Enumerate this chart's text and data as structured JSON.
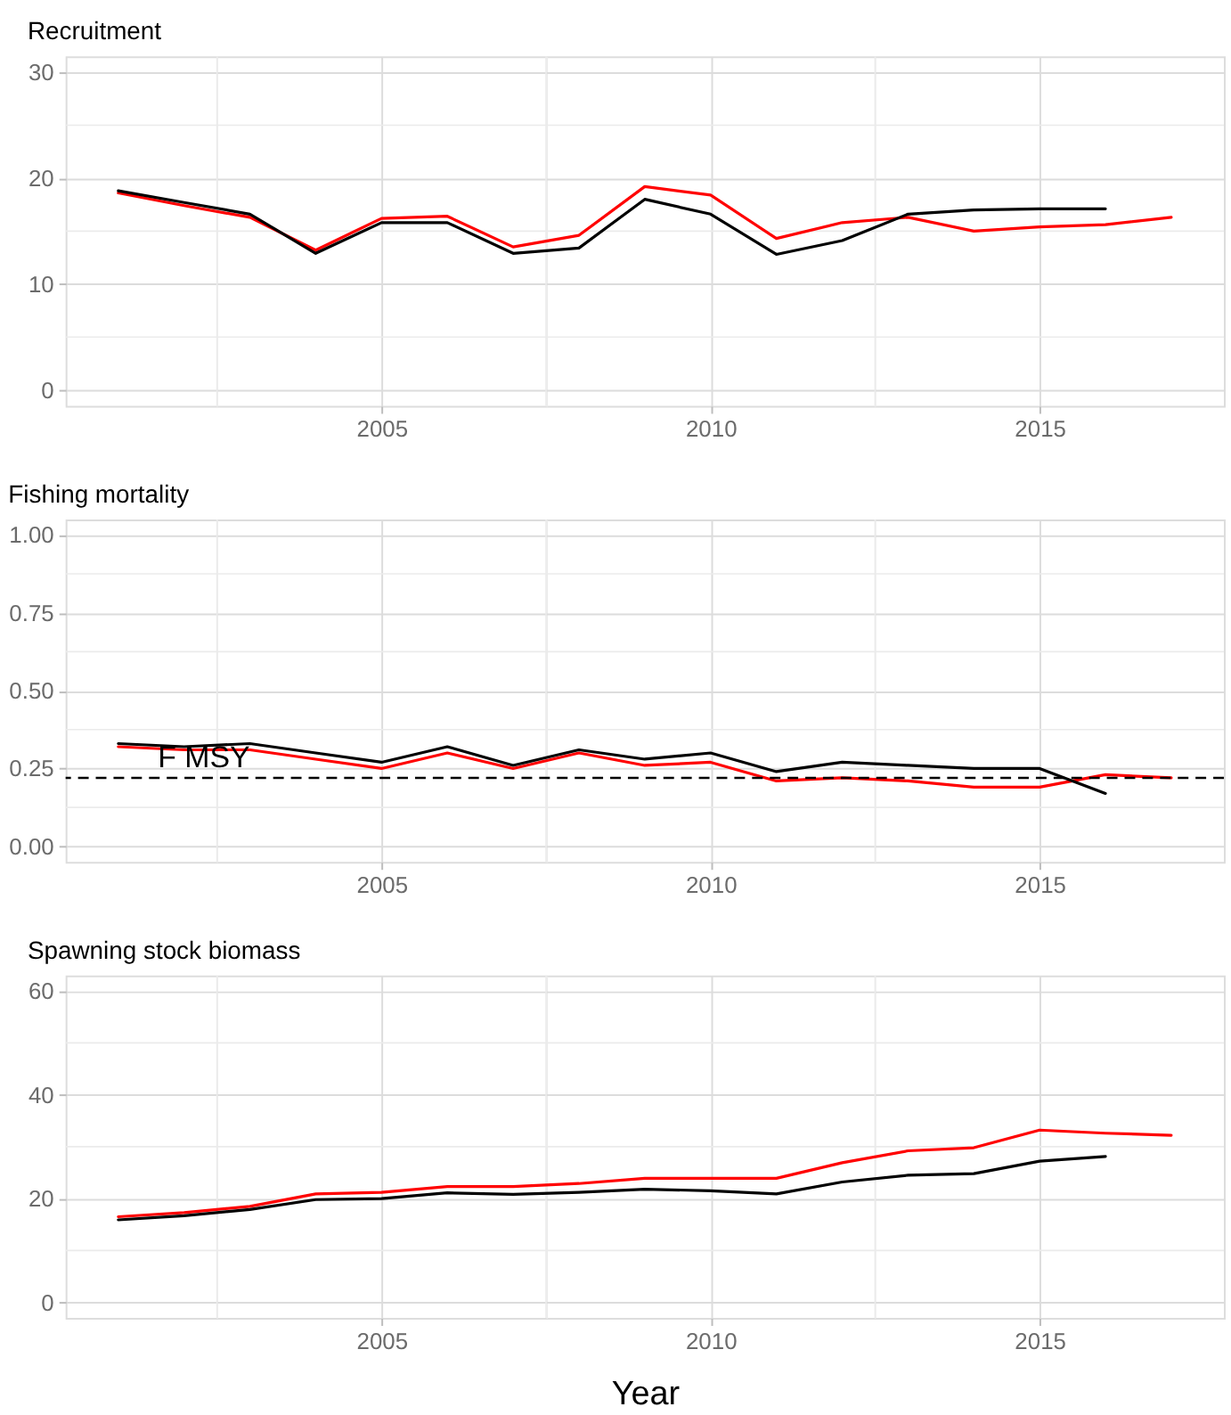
{
  "chart_data": [
    {
      "type": "line",
      "title": "Recruitment",
      "x": [
        2001,
        2002,
        2003,
        2004,
        2005,
        2006,
        2007,
        2008,
        2009,
        2010,
        2011,
        2012,
        2013,
        2014,
        2015,
        2016,
        2017
      ],
      "series": [
        {
          "color": "#ff0000",
          "values": [
            18.6,
            17.4,
            16.3,
            13.2,
            16.2,
            16.4,
            13.5,
            14.6,
            19.2,
            18.4,
            14.3,
            15.8,
            16.3,
            15.0,
            15.4,
            15.6,
            16.3
          ]
        },
        {
          "color": "#000000",
          "values": [
            18.8,
            17.7,
            16.6,
            12.9,
            15.8,
            15.8,
            12.9,
            13.4,
            18.0,
            16.6,
            12.8,
            14.1,
            16.6,
            17.0,
            17.1,
            17.1,
            null
          ]
        }
      ],
      "xlim": [
        2000.2,
        2017.8
      ],
      "xticks": [
        {
          "value": 2002.5,
          "label": null
        },
        2005,
        {
          "value": 2007.5,
          "label": null
        },
        2010,
        {
          "value": 2012.5,
          "label": null
        },
        2015
      ],
      "ylim": [
        -1.5,
        31.5
      ],
      "yticks": [
        0,
        {
          "value": 5,
          "label": null
        },
        10,
        {
          "value": 15,
          "label": null
        },
        20,
        {
          "value": 25,
          "label": null
        },
        30
      ],
      "grid": true
    },
    {
      "type": "line",
      "title": "Fishing mortality",
      "x": [
        2001,
        2002,
        2003,
        2004,
        2005,
        2006,
        2007,
        2008,
        2009,
        2010,
        2011,
        2012,
        2013,
        2014,
        2015,
        2016,
        2017
      ],
      "series": [
        {
          "color": "#ff0000",
          "values": [
            0.32,
            0.31,
            0.31,
            0.28,
            0.25,
            0.3,
            0.25,
            0.3,
            0.26,
            0.27,
            0.21,
            0.22,
            0.21,
            0.19,
            0.19,
            0.23,
            0.22
          ]
        },
        {
          "color": "#000000",
          "values": [
            0.33,
            0.32,
            0.33,
            0.3,
            0.27,
            0.32,
            0.26,
            0.31,
            0.28,
            0.3,
            0.24,
            0.27,
            0.26,
            0.25,
            0.25,
            0.17,
            null
          ]
        }
      ],
      "xlim": [
        2000.2,
        2017.8
      ],
      "xticks": [
        {
          "value": 2002.5,
          "label": null
        },
        2005,
        {
          "value": 2007.5,
          "label": null
        },
        2010,
        {
          "value": 2012.5,
          "label": null
        },
        2015
      ],
      "ylim": [
        -0.05,
        1.05
      ],
      "yticks": [
        {
          "value": 0,
          "label": "0.00"
        },
        {
          "value": 0.125,
          "label": null
        },
        0.25,
        {
          "value": 0.375,
          "label": null
        },
        {
          "value": 0.5,
          "label": "0.50"
        },
        {
          "value": 0.625,
          "label": null
        },
        0.75,
        {
          "value": 0.875,
          "label": null
        },
        {
          "value": 1,
          "label": "1.00"
        }
      ],
      "ref_lines": [
        {
          "axis": "y",
          "value": 0.22,
          "label": "F MSY",
          "color": "#000000",
          "line_style": "dashed"
        }
      ],
      "grid": true
    },
    {
      "type": "line",
      "title": "Spawning stock biomass",
      "xlabel": "Year",
      "x": [
        2001,
        2002,
        2003,
        2004,
        2005,
        2006,
        2007,
        2008,
        2009,
        2010,
        2011,
        2012,
        2013,
        2014,
        2015,
        2016,
        2017
      ],
      "series": [
        {
          "color": "#ff0000",
          "values": [
            16.5,
            17.3,
            18.5,
            20.9,
            21.2,
            22.3,
            22.3,
            22.9,
            23.9,
            23.9,
            23.9,
            26.9,
            29.2,
            29.8,
            33.2,
            32.6,
            32.2
          ]
        },
        {
          "color": "#000000",
          "values": [
            15.9,
            16.7,
            17.9,
            19.8,
            20.0,
            21.1,
            20.8,
            21.2,
            21.8,
            21.5,
            20.9,
            23.2,
            24.5,
            24.8,
            27.2,
            28.1,
            null
          ]
        }
      ],
      "xlim": [
        2000.2,
        2017.8
      ],
      "xticks": [
        {
          "value": 2002.5,
          "label": null
        },
        2005,
        {
          "value": 2007.5,
          "label": null
        },
        2010,
        {
          "value": 2012.5,
          "label": null
        },
        2015
      ],
      "ylim": [
        -3,
        63
      ],
      "yticks": [
        0,
        {
          "value": 10,
          "label": null
        },
        20,
        {
          "value": 30,
          "label": null
        },
        40,
        {
          "value": 50,
          "label": null
        },
        60
      ],
      "grid": true
    }
  ]
}
